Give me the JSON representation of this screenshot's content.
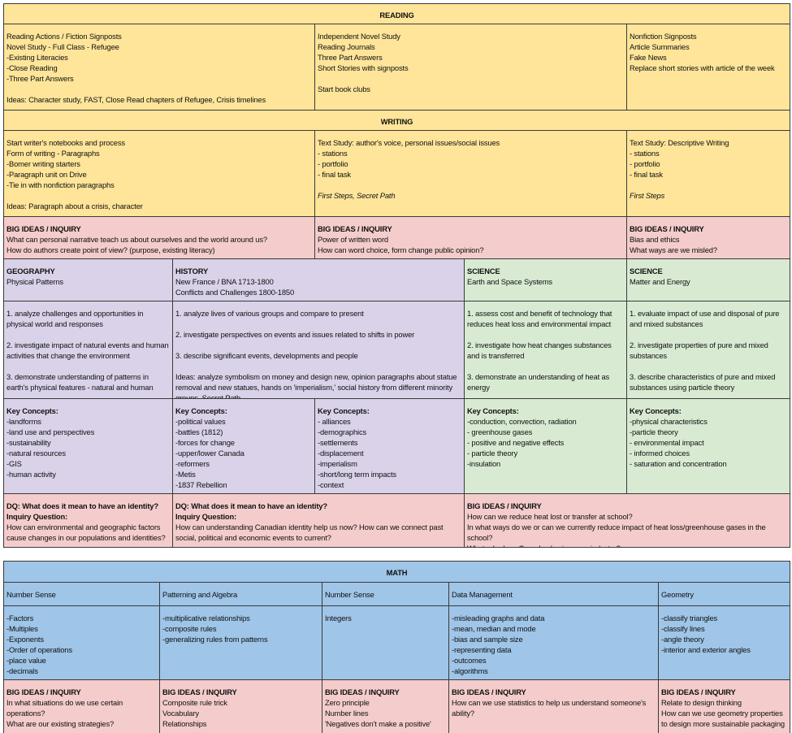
{
  "top": {
    "rows": [
      {
        "cells": [
          {
            "heading": "READING"
          }
        ]
      },
      {
        "cells": [
          {
            "paragraphs": [
              [
                "Reading Actions / Fiction Signposts",
                "Novel Study - Full Class - Refugee",
                "-Existing Literacies",
                "-Close Reading",
                "-Three Part Answers"
              ],
              [
                "Ideas: Character study, FAST, Close Read chapters of Refugee, Crisis timelines"
              ]
            ]
          },
          {
            "paragraphs": [
              [
                "Independent Novel Study",
                "Reading Journals",
                "Three Part Answers",
                "Short Stories with signposts"
              ],
              [
                "Start book clubs"
              ]
            ]
          },
          {
            "paragraphs": [
              [
                "Nonfiction Signposts",
                "Article Summaries",
                "Fake News",
                "Replace short stories with article of the week"
              ]
            ]
          }
        ]
      },
      {
        "cells": [
          {
            "heading": "WRITING"
          }
        ]
      },
      {
        "cells": [
          {
            "paragraphs": [
              [
                "Start writer's notebooks and process",
                "Form of writing - Paragraphs",
                "-Bomer writing starters",
                "-Paragraph unit on Drive",
                "-Tie in with nonfiction paragraphs"
              ],
              [
                "Ideas: Paragraph about a crisis, character"
              ]
            ]
          },
          {
            "paragraphs": [
              [
                "Text Study: author's voice, personal issues/social issues",
                "- stations",
                "- portfolio",
                "- final task"
              ]
            ],
            "italic": "First Steps, Secret Path"
          },
          {
            "paragraphs": [
              [
                "Text Study: Descriptive Writing",
                "- stations",
                "- portfolio",
                "- final task"
              ]
            ],
            "italic": "First Steps"
          }
        ]
      },
      {
        "cells": [
          {
            "bold": [
              "BIG IDEAS / INQUIRY"
            ],
            "paragraphs": [
              [
                "What can personal narrative teach us about ourselves and the world around us?",
                "How do authors create point of view? (purpose, existing literacy)"
              ]
            ]
          },
          {
            "bold": [
              "BIG IDEAS / INQUIRY"
            ],
            "paragraphs": [
              [
                "Power of written word",
                "How can word choice, form change public opinion?"
              ]
            ]
          },
          {
            "bold": [
              "BIG IDEAS / INQUIRY"
            ],
            "paragraphs": [
              [
                "Bias and ethics",
                "What ways are we misled?"
              ]
            ]
          }
        ]
      },
      {
        "cells": [
          {
            "bold": [
              "GEOGRAPHY"
            ],
            "paragraphs": [
              [
                "Physical Patterns"
              ]
            ]
          },
          {
            "bold": [
              "HISTORY"
            ],
            "paragraphs": [
              [
                " New France / BNA 1713-1800",
                "Conflicts and Challenges 1800-1850"
              ]
            ]
          },
          {
            "bold": [
              "SCIENCE"
            ],
            "paragraphs": [
              [
                "Earth and Space Systems"
              ]
            ]
          },
          {
            "bold": [
              "SCIENCE"
            ],
            "paragraphs": [
              [
                "Matter and Energy"
              ]
            ]
          }
        ]
      },
      {
        "cells": [
          {
            "paragraphs": [
              [
                "1. analyze challenges and opportunities in physical world and responses"
              ],
              [
                "2. investigate impact of natural events and human activities that change the environment"
              ],
              [
                "3. demonstrate understanding of patterns in earth's physical features - natural and human"
              ]
            ]
          },
          {
            "paragraphs": [
              [
                "1. analyze lives of various groups and compare to present"
              ],
              [
                "2. investigate perspectives on events and issues related to shifts in power"
              ],
              [
                "3. describe significant events, developments and people"
              ],
              [
                "Ideas: analyze symbolism on money and design new, opinion paragraphs about statue removal and new statues, hands on 'imperialism,' social history from different minority groups, Secret Path"
              ]
            ]
          },
          {
            "paragraphs": [
              [
                "1. assess cost and benefit of technology that reduces heat loss and environmental impact"
              ],
              [
                "2. investigate how heat changes substances and is transferred"
              ],
              [
                "3. demonstrate an understanding of heat as energy"
              ]
            ]
          },
          {
            "paragraphs": [
              [
                "1. evaluate impact of use and disposal of pure and mixed substances"
              ],
              [
                "2. investigate properties of pure and mixed substances"
              ],
              [
                "3. describe characteristics of pure and mixed substances using particle theory"
              ]
            ]
          }
        ]
      },
      {
        "cells": [
          {
            "bold": [
              "Key Concepts:"
            ],
            "paragraphs": [
              [
                "-landforms",
                "-land use and perspectives",
                "-sustainability",
                "-natural resources",
                "-GIS",
                "-human activity"
              ]
            ]
          },
          {
            "bold": [
              "Key Concepts:"
            ],
            "paragraphs": [
              [
                "-political values",
                "-battles (1812)",
                "-forces for change",
                "-upper/lower Canada",
                "-reformers",
                "-Metis",
                "-1837 Rebellion"
              ]
            ]
          },
          {
            "bold": [
              "Key Concepts:"
            ],
            "paragraphs": [
              [
                "- alliances",
                "-demographics",
                "-settlements",
                "-displacement",
                "-imperialism",
                "-short/long term impacts",
                "-context"
              ]
            ]
          },
          {
            "bold": [
              "Key Concepts:"
            ],
            "paragraphs": [
              [
                "-conduction, convection, radiation",
                "- greenhouse gases",
                "- positive and negative effects",
                "- particle theory",
                "-insulation"
              ]
            ]
          },
          {
            "bold": [
              "Key Concepts:"
            ],
            "paragraphs": [
              [
                "-physical characteristics",
                "-particle theory",
                "- environmental impact",
                "- informed choices",
                "- saturation and concentration"
              ]
            ]
          }
        ]
      },
      {
        "cells": [
          {
            "bold": [
              "DQ: What does it mean to have an identity?",
              "Inquiry Question:"
            ],
            "paragraphs": [
              [
                "How can environmental and geographic factors cause changes in our populations and identities?"
              ]
            ]
          },
          {
            "bold": [
              "DQ: What does it mean to have an identity?",
              "Inquiry Question:"
            ],
            "paragraphs": [
              [
                "How can understanding Canadian identity help us now? How can we connect past social, political and economic events to current?"
              ]
            ]
          },
          {
            "bold": [
              "BIG IDEAS / INQUIRY"
            ],
            "paragraphs": [
              [
                "How can we reduce heat lost or transfer at school?",
                "In what ways do we  or can we currently reduce impact of heat loss/greenhouse gases in the school?",
                "What role does Canada play in green industry?"
              ]
            ]
          }
        ]
      }
    ]
  },
  "math": {
    "rows": [
      {
        "cells": [
          {
            "heading": "MATH"
          }
        ]
      },
      {
        "cells": [
          {
            "paragraphs": [
              [
                "Number Sense"
              ]
            ]
          },
          {
            "paragraphs": [
              [
                "Patterning and Algebra"
              ]
            ]
          },
          {
            "paragraphs": [
              [
                "Number Sense"
              ]
            ]
          },
          {
            "paragraphs": [
              [
                "Data Management"
              ]
            ]
          },
          {
            "paragraphs": [
              [
                "Geometry"
              ]
            ]
          }
        ]
      },
      {
        "cells": [
          {
            "paragraphs": [
              [
                "-Factors",
                "-Multiples",
                "-Exponents",
                "-Order of operations",
                "-place value",
                "-decimals"
              ]
            ]
          },
          {
            "paragraphs": [
              [
                "-multiplicative relationships",
                "-composite rules",
                "-generalizing rules from patterns"
              ]
            ]
          },
          {
            "paragraphs": [
              [
                "Integers"
              ]
            ]
          },
          {
            "paragraphs": [
              [
                "-misleading graphs and data",
                "-mean, median and mode",
                "-bias and sample size",
                "-representing data",
                "-outcomes",
                "-algorithms"
              ]
            ]
          },
          {
            "paragraphs": [
              [
                "-classify triangles",
                "-classify lines",
                "-angle theory",
                "-interior and exterior angles"
              ]
            ]
          }
        ]
      },
      {
        "cells": [
          {
            "bold": [
              "BIG IDEAS / INQUIRY"
            ],
            "paragraphs": [
              [
                "In what situations do we use certain operations?",
                "What are our existing strategies?"
              ]
            ]
          },
          {
            "bold": [
              "BIG IDEAS / INQUIRY"
            ],
            "paragraphs": [
              [
                "Composite rule trick",
                "Vocabulary",
                "Relationships"
              ]
            ]
          },
          {
            "bold": [
              "BIG IDEAS / INQUIRY"
            ],
            "paragraphs": [
              [
                "Zero principle",
                "Number lines",
                "'Negatives don't make a positive'"
              ]
            ]
          },
          {
            "bold": [
              "BIG IDEAS / INQUIRY"
            ],
            "paragraphs": [
              [
                "How can we use statistics to help us understand someone's ability?"
              ]
            ]
          },
          {
            "bold": [
              "BIG IDEAS / INQUIRY"
            ],
            "paragraphs": [
              [
                "Relate to design thinking",
                "How can we use geometry properties to design more sustainable packaging"
              ]
            ]
          }
        ]
      }
    ]
  }
}
